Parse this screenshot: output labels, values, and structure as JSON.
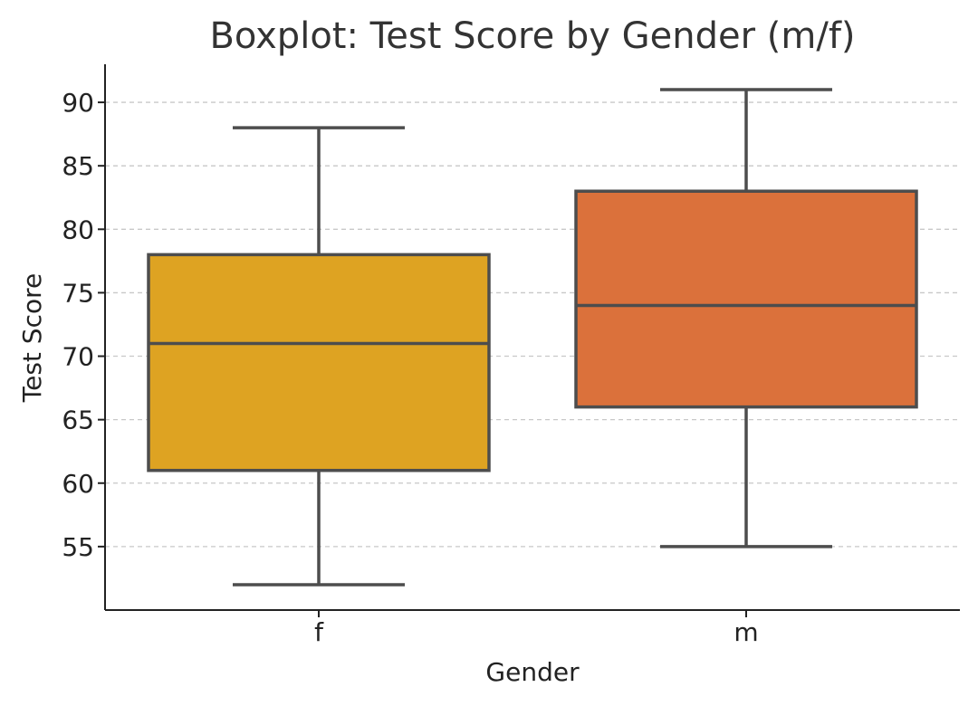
{
  "chart_data": {
    "type": "box",
    "title": "Boxplot: Test Score by Gender (m/f)",
    "xlabel": "Gender",
    "ylabel": "Test Score",
    "categories": [
      "f",
      "m"
    ],
    "boxes": [
      {
        "category": "f",
        "whislo": 52,
        "q1": 61,
        "median": 71,
        "q3": 78,
        "whishi": 88,
        "color": "#dea322"
      },
      {
        "category": "m",
        "whislo": 55,
        "q1": 66,
        "median": 74,
        "q3": 83,
        "whishi": 91,
        "color": "#db713b"
      }
    ],
    "ylim": [
      50,
      93
    ],
    "yticks": [
      55,
      60,
      65,
      70,
      75,
      80,
      85,
      90
    ],
    "grid": "y-dashed",
    "legend": "none"
  }
}
